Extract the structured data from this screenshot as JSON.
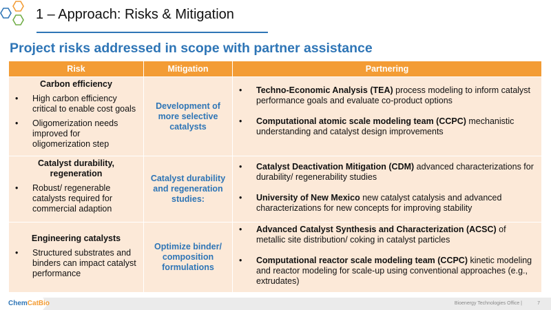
{
  "header": {
    "title": "1 – Approach: Risks & Mitigation",
    "subtitle": "Project risks addressed in scope with partner assistance"
  },
  "table": {
    "columns": [
      "Risk",
      "Mitigation",
      "Partnering"
    ],
    "rows": [
      {
        "risk_title": "Carbon efficiency",
        "risk_items": [
          "High carbon efficiency critical to enable cost goals",
          "Oligomerization needs improved for oligomerization step"
        ],
        "mitigation": "Development of more selective catalysts",
        "partnering": [
          {
            "bold": "Techno-Economic Analysis (TEA)",
            "text": " process modeling to inform catalyst performance goals and evaluate co-product options"
          },
          {
            "bold": "Computational atomic scale modeling team (CCPC)",
            "text": " mechanistic understanding and catalyst design improvements"
          }
        ]
      },
      {
        "risk_title": "Catalyst durability, regeneration",
        "risk_items": [
          "Robust/ regenerable catalysts required for commercial adaption"
        ],
        "mitigation": "Catalyst durability and regeneration studies:",
        "partnering": [
          {
            "bold": "Catalyst Deactivation Mitigation (CDM)",
            "text": " advanced characterizations for durability/ regenerability studies"
          },
          {
            "bold": "University of New Mexico",
            "text": " new catalyst catalysis and advanced characterizations for new concepts for improving stability"
          }
        ]
      },
      {
        "risk_title": "Engineering catalysts",
        "risk_items": [
          "Structured substrates and binders can impact catalyst performance"
        ],
        "mitigation": "Optimize binder/ composition formulations",
        "partnering": [
          {
            "bold": "Advanced Catalyst Synthesis and Characterization (ACSC)",
            "text": " of metallic site distribution/ coking in catalyst particles"
          },
          {
            "bold": "Computational reactor scale modeling team (CCPC)",
            "text": " kinetic modeling and reactor modeling for scale-up using conventional approaches (e.g., extrudates)"
          }
        ]
      }
    ]
  },
  "footer": {
    "brand_a": "Chem",
    "brand_b": "CatBio",
    "office": "Bioenergy Technologies Office |",
    "page": "7"
  },
  "colors": {
    "accent_blue": "#2e75b6",
    "header_orange": "#f39c35",
    "row_fill": "#fce9d8"
  }
}
